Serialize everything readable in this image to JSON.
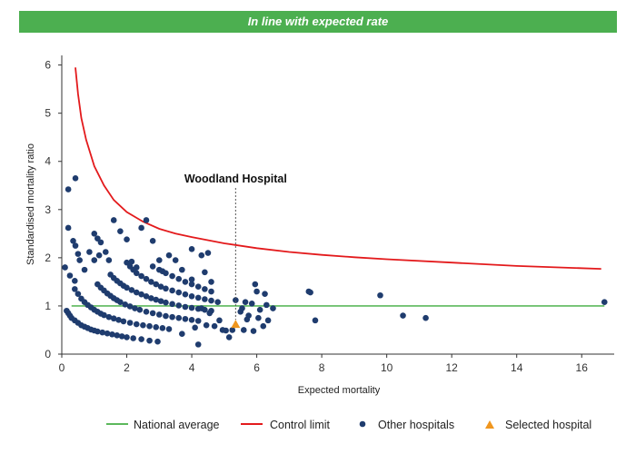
{
  "banner": {
    "text": "In line with expected rate",
    "color": "#4caf50"
  },
  "chart_data": {
    "type": "scatter",
    "title": "",
    "xlabel": "Expected mortality",
    "ylabel": "Standardised mortality ratio",
    "xlim": [
      0,
      17
    ],
    "ylim": [
      0,
      6.2
    ],
    "xticks": [
      0,
      2,
      4,
      6,
      8,
      10,
      12,
      14,
      16
    ],
    "yticks": [
      0,
      1,
      2,
      3,
      4,
      5,
      6
    ],
    "grid": false,
    "legend_position": "bottom",
    "colors": {
      "national": "#5cb85c",
      "control": "#e31a1c",
      "other": "#1f3c6e",
      "selected": "#f0961e"
    },
    "national_average": {
      "name": "National average",
      "y": 1,
      "x_range": [
        0.3,
        16.7
      ]
    },
    "control_limit": {
      "name": "Control limit",
      "points": [
        [
          0.42,
          5.95
        ],
        [
          0.5,
          5.4
        ],
        [
          0.6,
          4.9
        ],
        [
          0.75,
          4.45
        ],
        [
          1.0,
          3.9
        ],
        [
          1.3,
          3.5
        ],
        [
          1.6,
          3.2
        ],
        [
          2.0,
          2.95
        ],
        [
          2.5,
          2.75
        ],
        [
          3.0,
          2.6
        ],
        [
          3.5,
          2.5
        ],
        [
          4.0,
          2.43
        ],
        [
          5.0,
          2.3
        ],
        [
          6.0,
          2.2
        ],
        [
          7.0,
          2.12
        ],
        [
          8.0,
          2.06
        ],
        [
          9.0,
          2.01
        ],
        [
          10.0,
          1.97
        ],
        [
          12.0,
          1.9
        ],
        [
          14.0,
          1.83
        ],
        [
          16.6,
          1.77
        ]
      ]
    },
    "other_hospitals": {
      "name": "Other hospitals",
      "points": [
        [
          0.2,
          3.42
        ],
        [
          0.42,
          3.65
        ],
        [
          0.2,
          2.62
        ],
        [
          0.35,
          2.35
        ],
        [
          0.42,
          2.25
        ],
        [
          0.5,
          2.08
        ],
        [
          0.7,
          1.75
        ],
        [
          0.85,
          2.12
        ],
        [
          1.0,
          2.5
        ],
        [
          1.1,
          2.4
        ],
        [
          1.2,
          2.32
        ],
        [
          0.1,
          1.8
        ],
        [
          0.25,
          1.63
        ],
        [
          0.4,
          1.52
        ],
        [
          0.55,
          1.95
        ],
        [
          1.0,
          1.95
        ],
        [
          1.15,
          2.05
        ],
        [
          1.35,
          2.12
        ],
        [
          1.45,
          1.95
        ],
        [
          1.6,
          2.78
        ],
        [
          1.8,
          2.55
        ],
        [
          2.0,
          2.38
        ],
        [
          2.15,
          1.92
        ],
        [
          2.3,
          1.8
        ],
        [
          2.45,
          2.62
        ],
        [
          2.6,
          2.78
        ],
        [
          2.8,
          2.35
        ],
        [
          3.0,
          1.95
        ],
        [
          3.1,
          1.72
        ],
        [
          3.3,
          2.05
        ],
        [
          3.5,
          1.95
        ],
        [
          3.7,
          1.75
        ],
        [
          4.0,
          2.18
        ],
        [
          4.3,
          2.05
        ],
        [
          4.5,
          2.1
        ],
        [
          4.0,
          1.55
        ],
        [
          4.4,
          1.7
        ],
        [
          4.6,
          1.5
        ],
        [
          0.15,
          0.9
        ],
        [
          0.2,
          0.85
        ],
        [
          0.25,
          0.8
        ],
        [
          0.3,
          0.75
        ],
        [
          0.4,
          0.7
        ],
        [
          0.5,
          0.65
        ],
        [
          0.6,
          0.6
        ],
        [
          0.7,
          0.57
        ],
        [
          0.8,
          0.54
        ],
        [
          0.9,
          0.51
        ],
        [
          1.0,
          0.49
        ],
        [
          1.1,
          0.47
        ],
        [
          1.25,
          0.45
        ],
        [
          1.4,
          0.43
        ],
        [
          1.55,
          0.41
        ],
        [
          1.7,
          0.39
        ],
        [
          1.85,
          0.37
        ],
        [
          2.0,
          0.35
        ],
        [
          2.2,
          0.33
        ],
        [
          2.45,
          0.31
        ],
        [
          2.7,
          0.28
        ],
        [
          2.95,
          0.26
        ],
        [
          0.4,
          1.35
        ],
        [
          0.5,
          1.25
        ],
        [
          0.6,
          1.15
        ],
        [
          0.7,
          1.08
        ],
        [
          0.8,
          1.02
        ],
        [
          0.9,
          0.97
        ],
        [
          1.0,
          0.92
        ],
        [
          1.1,
          0.88
        ],
        [
          1.2,
          0.84
        ],
        [
          1.3,
          0.81
        ],
        [
          1.45,
          0.77
        ],
        [
          1.6,
          0.74
        ],
        [
          1.75,
          0.71
        ],
        [
          1.9,
          0.68
        ],
        [
          2.1,
          0.65
        ],
        [
          2.3,
          0.62
        ],
        [
          2.5,
          0.6
        ],
        [
          2.7,
          0.58
        ],
        [
          2.9,
          0.56
        ],
        [
          3.1,
          0.54
        ],
        [
          3.3,
          0.52
        ],
        [
          1.1,
          1.45
        ],
        [
          1.2,
          1.38
        ],
        [
          1.3,
          1.32
        ],
        [
          1.4,
          1.26
        ],
        [
          1.5,
          1.21
        ],
        [
          1.6,
          1.16
        ],
        [
          1.7,
          1.12
        ],
        [
          1.8,
          1.08
        ],
        [
          1.95,
          1.03
        ],
        [
          2.1,
          0.99
        ],
        [
          2.25,
          0.95
        ],
        [
          2.4,
          0.92
        ],
        [
          2.6,
          0.88
        ],
        [
          2.8,
          0.85
        ],
        [
          3.0,
          0.82
        ],
        [
          3.2,
          0.79
        ],
        [
          3.4,
          0.77
        ],
        [
          3.6,
          0.75
        ],
        [
          3.8,
          0.73
        ],
        [
          4.0,
          0.71
        ],
        [
          4.2,
          0.69
        ],
        [
          1.5,
          1.65
        ],
        [
          1.6,
          1.58
        ],
        [
          1.7,
          1.52
        ],
        [
          1.8,
          1.47
        ],
        [
          1.9,
          1.42
        ],
        [
          2.0,
          1.38
        ],
        [
          2.15,
          1.33
        ],
        [
          2.3,
          1.28
        ],
        [
          2.45,
          1.24
        ],
        [
          2.6,
          1.2
        ],
        [
          2.75,
          1.16
        ],
        [
          2.9,
          1.13
        ],
        [
          3.05,
          1.1
        ],
        [
          3.2,
          1.07
        ],
        [
          3.4,
          1.04
        ],
        [
          3.6,
          1.01
        ],
        [
          3.8,
          0.98
        ],
        [
          4.0,
          0.96
        ],
        [
          4.2,
          0.94
        ],
        [
          4.4,
          0.92
        ],
        [
          4.6,
          0.9
        ],
        [
          2.0,
          1.9
        ],
        [
          2.1,
          1.82
        ],
        [
          2.2,
          1.75
        ],
        [
          2.3,
          1.68
        ],
        [
          2.45,
          1.62
        ],
        [
          2.6,
          1.56
        ],
        [
          2.75,
          1.5
        ],
        [
          2.9,
          1.45
        ],
        [
          3.05,
          1.4
        ],
        [
          3.2,
          1.36
        ],
        [
          3.4,
          1.32
        ],
        [
          3.6,
          1.28
        ],
        [
          3.8,
          1.24
        ],
        [
          4.0,
          1.2
        ],
        [
          4.2,
          1.17
        ],
        [
          4.4,
          1.14
        ],
        [
          4.6,
          1.11
        ],
        [
          4.8,
          1.08
        ],
        [
          2.8,
          1.82
        ],
        [
          3.0,
          1.75
        ],
        [
          3.2,
          1.68
        ],
        [
          3.4,
          1.62
        ],
        [
          3.6,
          1.56
        ],
        [
          3.8,
          1.5
        ],
        [
          4.0,
          1.45
        ],
        [
          4.2,
          1.4
        ],
        [
          4.4,
          1.35
        ],
        [
          4.6,
          1.3
        ],
        [
          3.7,
          0.42
        ],
        [
          4.1,
          0.55
        ],
        [
          4.2,
          0.2
        ],
        [
          4.3,
          0.95
        ],
        [
          4.45,
          0.6
        ],
        [
          4.55,
          0.85
        ],
        [
          4.7,
          0.58
        ],
        [
          4.85,
          0.7
        ],
        [
          4.95,
          0.5
        ],
        [
          5.05,
          0.49
        ],
        [
          5.15,
          0.35
        ],
        [
          5.25,
          0.5
        ],
        [
          5.35,
          1.12
        ],
        [
          5.5,
          0.88
        ],
        [
          5.55,
          0.95
        ],
        [
          5.6,
          0.5
        ],
        [
          5.65,
          1.08
        ],
        [
          5.7,
          0.72
        ],
        [
          5.75,
          0.8
        ],
        [
          5.85,
          1.05
        ],
        [
          5.9,
          0.48
        ],
        [
          5.95,
          1.45
        ],
        [
          6.0,
          1.3
        ],
        [
          6.05,
          0.75
        ],
        [
          6.1,
          0.92
        ],
        [
          6.2,
          0.58
        ],
        [
          6.25,
          1.25
        ],
        [
          6.3,
          1.02
        ],
        [
          6.35,
          0.7
        ],
        [
          6.5,
          0.95
        ],
        [
          7.6,
          1.3
        ],
        [
          7.65,
          1.28
        ],
        [
          7.8,
          0.7
        ],
        [
          9.8,
          1.22
        ],
        [
          10.5,
          0.8
        ],
        [
          11.2,
          0.75
        ],
        [
          16.7,
          1.08
        ]
      ]
    },
    "selected_hospital": {
      "name": "Selected hospital",
      "label": "Woodland Hospital",
      "x": 5.35,
      "y": 0.62
    }
  }
}
